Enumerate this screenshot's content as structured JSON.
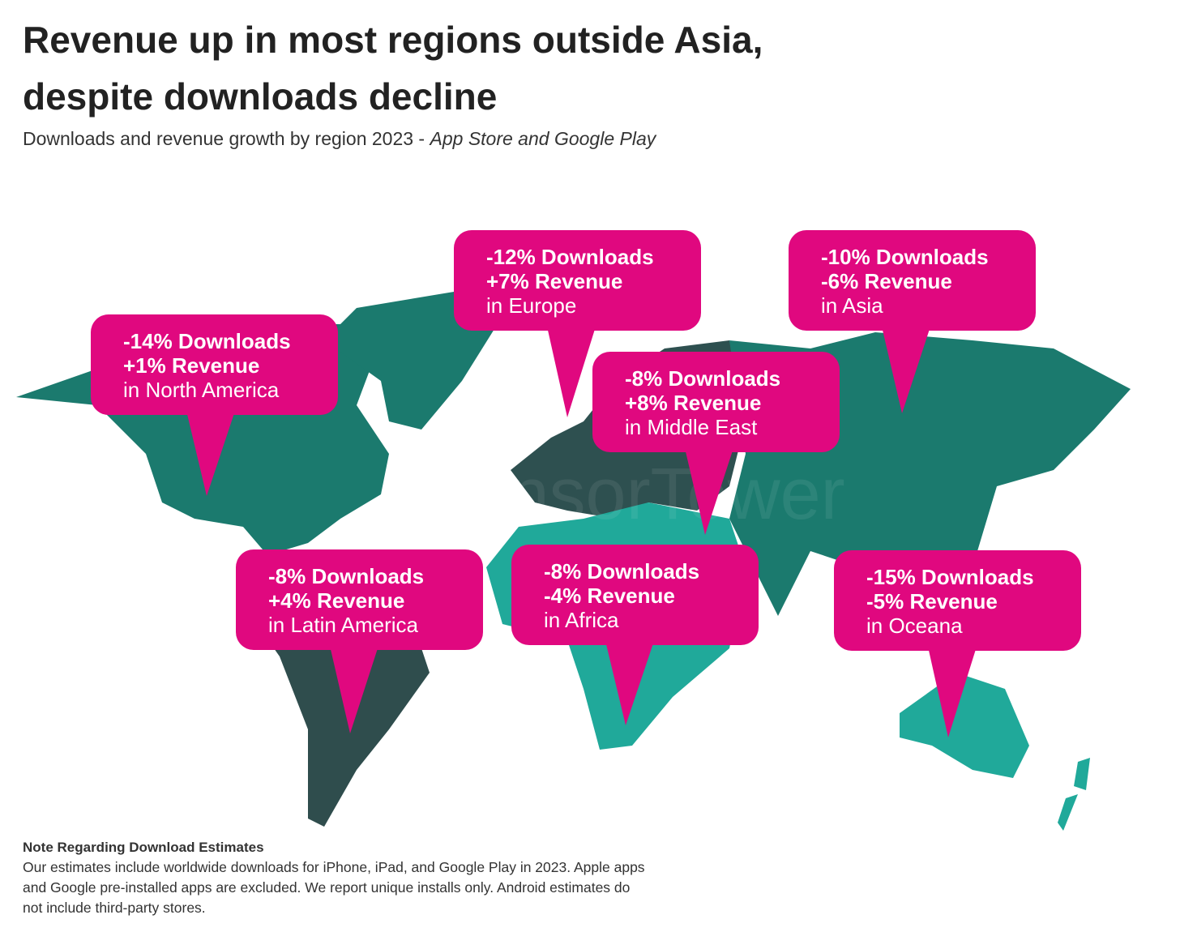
{
  "header": {
    "title_lines": [
      "Revenue up in most regions outside Asia,",
      "despite downloads decline"
    ],
    "subtitle": "Downloads and revenue growth by region 2023 - ",
    "subtitle_source": "App Store and Google Play"
  },
  "watermark": "SensorTower",
  "callouts": [
    {
      "downloads": "-14% Downloads",
      "revenue": "+1% Revenue",
      "region": "in North America"
    },
    {
      "downloads": "-12% Downloads",
      "revenue": "+7% Revenue",
      "region": "in Europe"
    },
    {
      "downloads": "-10% Downloads",
      "revenue": "-6% Revenue",
      "region": "in Asia"
    },
    {
      "downloads": "-8% Downloads",
      "revenue": "+8% Revenue",
      "region": "in Middle East"
    },
    {
      "downloads": "-8% Downloads",
      "revenue": "+4% Revenue",
      "region": "in Latin America"
    },
    {
      "downloads": "-8% Downloads",
      "revenue": "-4% Revenue",
      "region": "in Africa"
    },
    {
      "downloads": "-15% Downloads",
      "revenue": "-5% Revenue",
      "region": "in Oceana"
    }
  ],
  "note": {
    "title": "Note Regarding Download Estimates",
    "body": "Our estimates include worldwide downloads for iPhone, iPad, and Google Play in 2023. Apple apps and Google pre-installed apps are excluded. We report unique installs only. Android estimates do not include third-party stores."
  }
}
